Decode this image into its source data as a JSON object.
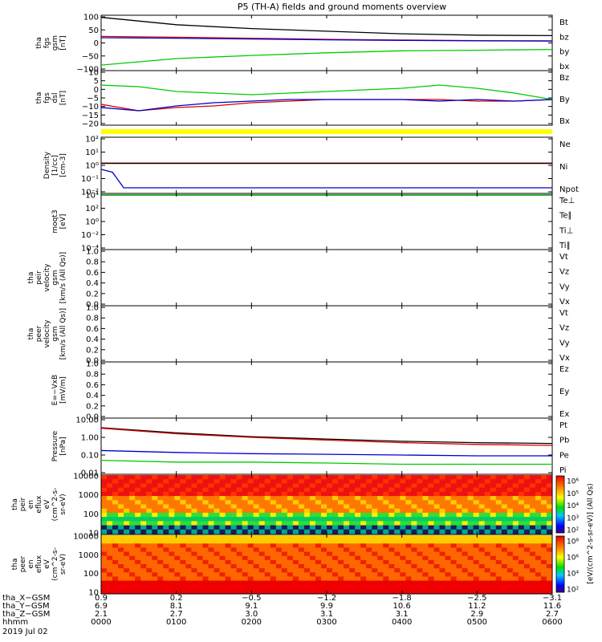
{
  "title": "P5 (TH-A) fields and ground moments overview",
  "colors": {
    "black": "#000000",
    "red": "#dd0000",
    "green": "#00cc00",
    "blue": "#0000cc",
    "yellow": "#ffff00"
  },
  "chart_data": [
    {
      "type": "line",
      "ylabel_lines": [
        "tha",
        "fgs",
        "gsm",
        "[nT]"
      ],
      "yticks": [
        "100",
        "50",
        "0",
        "−50",
        "−100"
      ],
      "ylim": [
        -100,
        100
      ],
      "series": [
        {
          "name": "Bt",
          "color": "#000000",
          "x": [
            0,
            1,
            2,
            3,
            4,
            5,
            6
          ],
          "y": [
            98,
            70,
            55,
            45,
            35,
            30,
            28
          ]
        },
        {
          "name": "bz",
          "color": "#dd0000",
          "x": [
            0,
            1,
            2,
            3,
            4,
            5,
            6
          ],
          "y": [
            25,
            22,
            18,
            14,
            11,
            9,
            8
          ]
        },
        {
          "name": "by",
          "color": "#00cc00",
          "x": [
            0,
            1,
            2,
            3,
            4,
            5,
            6
          ],
          "y": [
            -85,
            -60,
            -48,
            -38,
            -30,
            -28,
            -25
          ]
        },
        {
          "name": "bx",
          "color": "#0000cc",
          "x": [
            0,
            1,
            2,
            3,
            4,
            5,
            6
          ],
          "y": [
            20,
            18,
            15,
            12,
            10,
            8,
            7
          ]
        }
      ]
    },
    {
      "type": "line",
      "ylabel_lines": [
        "tha",
        "fgs",
        "dsl",
        "[nT]"
      ],
      "yticks": [
        "10",
        "5",
        "0",
        "−5",
        "−10",
        "−15",
        "−20"
      ],
      "ylim": [
        -22,
        10
      ],
      "series": [
        {
          "name": "Bz",
          "color": "#dd0000",
          "x": [
            0,
            0.5,
            1,
            1.5,
            2,
            2.5,
            3,
            3.5,
            4,
            4.5,
            5,
            5.5,
            6
          ],
          "y": [
            -10,
            -14,
            -12,
            -11,
            -9,
            -8,
            -7,
            -7,
            -7,
            -7,
            -8,
            -8,
            -7
          ]
        },
        {
          "name": "By",
          "color": "#00cc00",
          "x": [
            0,
            0.5,
            1,
            1.5,
            2,
            2.5,
            3,
            3.5,
            4,
            4.5,
            5,
            5.5,
            6
          ],
          "y": [
            2,
            1,
            -2,
            -3,
            -4,
            -3,
            -2,
            -1,
            0,
            2,
            0,
            -3,
            -7
          ]
        },
        {
          "name": "Bx",
          "color": "#0000cc",
          "x": [
            0,
            0.5,
            1,
            1.5,
            2,
            2.5,
            3,
            3.5,
            4,
            4.5,
            5,
            5.5,
            6
          ],
          "y": [
            -12,
            -14,
            -11,
            -9,
            -8,
            -7,
            -7,
            -7,
            -7,
            -8,
            -7,
            -8,
            -7
          ]
        }
      ]
    },
    {
      "type": "line",
      "ylabel_lines": [
        "Density",
        "[1/cc]",
        "[cm-3]"
      ],
      "yticks": [
        "10²",
        "10¹",
        "10⁰",
        "10⁻¹",
        "10⁻²"
      ],
      "ylog": true,
      "series": [
        {
          "name": "Ne",
          "color": "#dd0000",
          "x": [
            0,
            6
          ],
          "y": [
            1.5,
            1.5
          ]
        },
        {
          "name": "Ni",
          "color": "#000000",
          "x": [
            0,
            6
          ],
          "y": [
            1.4,
            1.4
          ]
        },
        {
          "name": "Npot",
          "color": "#0000cc",
          "x": [
            0,
            0.15,
            0.3,
            6
          ],
          "y": [
            0.5,
            0.3,
            0.02,
            0.02
          ]
        }
      ]
    },
    {
      "type": "line",
      "ylabel_lines": [
        "moqt3",
        "[eV]"
      ],
      "yticks": [
        "10⁴",
        "10²",
        "10⁰",
        "10⁻²",
        "10⁻⁴"
      ],
      "ylog": true,
      "series": [
        {
          "name": "Te⊥",
          "color": "#dd0000",
          "x": [
            0,
            6
          ],
          "y": [
            10000,
            10000
          ]
        },
        {
          "name": "Te∥",
          "color": "#000000",
          "x": [
            0,
            6
          ],
          "y": [
            10000,
            10000
          ]
        },
        {
          "name": "Ti⊥",
          "color": "#0000cc",
          "x": [
            0,
            6
          ],
          "y": [
            10000,
            10000
          ]
        },
        {
          "name": "Ti∥",
          "color": "#00cc00",
          "x": [
            0,
            6
          ],
          "y": [
            10000,
            10000
          ]
        }
      ]
    },
    {
      "type": "line",
      "ylabel_lines": [
        "tha",
        "peir",
        "velocity",
        "gsm",
        "[km/s (All Qs)]"
      ],
      "yticks": [
        "1.0",
        "0.8",
        "0.6",
        "0.4",
        "0.2",
        "0.0"
      ],
      "ylim": [
        0,
        1
      ],
      "series": [
        {
          "name": "Vt",
          "color": "#000000"
        },
        {
          "name": "Vz",
          "color": "#dd0000"
        },
        {
          "name": "Vy",
          "color": "#00cc00"
        },
        {
          "name": "Vx",
          "color": "#0000cc"
        }
      ]
    },
    {
      "type": "line",
      "ylabel_lines": [
        "tha",
        "peer",
        "velocity",
        "gsm",
        "[km/s (All Qs)]"
      ],
      "yticks": [
        "1.0",
        "0.8",
        "0.6",
        "0.4",
        "0.2",
        "0.0"
      ],
      "ylim": [
        0,
        1
      ],
      "series": [
        {
          "name": "Vt",
          "color": "#000000"
        },
        {
          "name": "Vz",
          "color": "#dd0000"
        },
        {
          "name": "Vy",
          "color": "#00cc00"
        },
        {
          "name": "Vx",
          "color": "#0000cc"
        }
      ]
    },
    {
      "type": "line",
      "ylabel_lines": [
        "E=−VxB",
        "[mV/m]"
      ],
      "yticks": [
        "1.0",
        "0.8",
        "0.6",
        "0.4",
        "0.2",
        "0.0"
      ],
      "ylim": [
        0,
        1
      ],
      "series": [
        {
          "name": "Ez",
          "color": "#dd0000"
        },
        {
          "name": "Ey",
          "color": "#00cc00"
        },
        {
          "name": "Ex",
          "color": "#0000cc"
        }
      ]
    },
    {
      "type": "line",
      "ylabel_lines": [
        "Pressure",
        "[nPa]"
      ],
      "yticks": [
        "10.00",
        "1.00",
        "0.10",
        "0.01"
      ],
      "ylog": true,
      "series": [
        {
          "name": "Pt",
          "color": "#000000",
          "x": [
            0,
            1,
            2,
            3,
            4,
            5,
            6
          ],
          "y": [
            3.5,
            1.8,
            1.1,
            0.8,
            0.6,
            0.5,
            0.45
          ]
        },
        {
          "name": "Pb",
          "color": "#dd0000",
          "x": [
            0,
            1,
            2,
            3,
            4,
            5,
            6
          ],
          "y": [
            3.3,
            1.6,
            1.0,
            0.7,
            0.5,
            0.4,
            0.35
          ]
        },
        {
          "name": "Pe",
          "color": "#00cc00",
          "x": [
            0,
            1,
            2,
            3,
            4,
            5,
            6
          ],
          "y": [
            0.05,
            0.04,
            0.04,
            0.035,
            0.03,
            0.03,
            0.03
          ]
        },
        {
          "name": "Pi",
          "color": "#0000cc",
          "x": [
            0,
            1,
            2,
            3,
            4,
            5,
            6
          ],
          "y": [
            0.18,
            0.14,
            0.12,
            0.11,
            0.1,
            0.09,
            0.09
          ]
        }
      ]
    },
    {
      "type": "heatmap",
      "ylabel_lines": [
        "tha",
        "peir",
        "en",
        "eflux",
        "eV",
        "(cm^2-s-",
        "sr-eV)"
      ],
      "yticks": [
        "10000",
        "1000",
        "100",
        "10"
      ],
      "colorbar_ticks": [
        "10⁶",
        "10⁵",
        "10⁴",
        "10³",
        "10²"
      ]
    },
    {
      "type": "heatmap",
      "ylabel_lines": [
        "tha",
        "peer",
        "en",
        "eflux",
        "eV",
        "(cm^2-s-",
        "sr-eV)"
      ],
      "yticks": [
        "10000",
        "1000",
        "100",
        "10"
      ],
      "colorbar_ticks": [
        "10⁸",
        "10⁶",
        "10⁴",
        "10²"
      ]
    }
  ],
  "colorbar_label": "[eV/(cm^2-s-sr-eV)] (All Qs)",
  "xaxis": {
    "row_labels": [
      "tha_X−GSM",
      "tha_Y−GSM",
      "tha_Z−GSM",
      "hhmm",
      "2019 Jul 02"
    ],
    "values": [
      [
        "0.9",
        "0.2",
        "−0.5",
        "−1.2",
        "−1.8",
        "−2.5",
        "−3.1"
      ],
      [
        "6.9",
        "8.1",
        "9.1",
        "9.9",
        "10.6",
        "11.2",
        "11.6"
      ],
      [
        "2.1",
        "2.7",
        "3.0",
        "3.1",
        "3.1",
        "2.9",
        "2.7"
      ],
      [
        "0000",
        "0100",
        "0200",
        "0300",
        "0400",
        "0500",
        "0600"
      ]
    ]
  }
}
